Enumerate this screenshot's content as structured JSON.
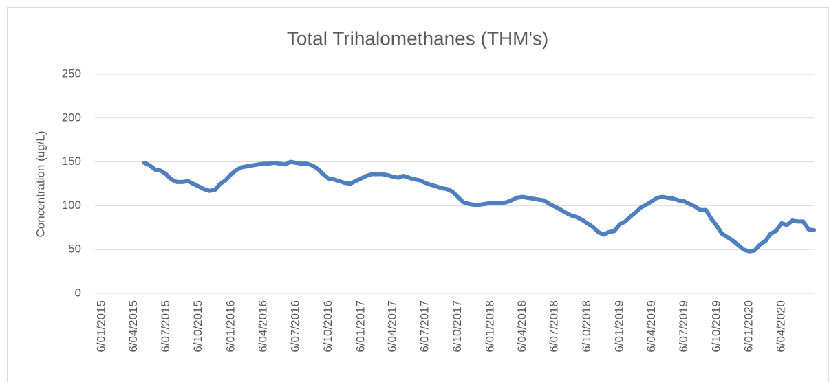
{
  "chart_data": {
    "type": "line",
    "title": "Total Trihalomethanes (THM's)",
    "y_label": "Concentration (ug/L)",
    "x": [
      "6/05/2015",
      "21/05/2015",
      "6/06/2015",
      "21/06/2015",
      "6/07/2015",
      "21/07/2015",
      "6/08/2015",
      "21/08/2015",
      "6/09/2015",
      "21/09/2015",
      "6/10/2015",
      "21/10/2015",
      "6/11/2015",
      "21/11/2015",
      "6/12/2015",
      "21/12/2015",
      "6/01/2016",
      "21/01/2016",
      "6/02/2016",
      "21/02/2016",
      "6/03/2016",
      "21/03/2016",
      "6/04/2016",
      "21/04/2016",
      "6/05/2016",
      "21/05/2016",
      "6/06/2016",
      "21/06/2016",
      "6/07/2016",
      "21/07/2016",
      "6/08/2016",
      "21/08/2016",
      "6/09/2016",
      "21/09/2016",
      "6/10/2016",
      "21/10/2016",
      "6/11/2016",
      "21/11/2016",
      "6/12/2016",
      "21/12/2016",
      "6/01/2017",
      "21/01/2017",
      "6/02/2017",
      "21/02/2017",
      "6/03/2017",
      "21/03/2017",
      "6/04/2017",
      "21/04/2017",
      "6/05/2017",
      "21/05/2017",
      "6/06/2017",
      "21/06/2017",
      "6/07/2017",
      "21/07/2017",
      "6/08/2017",
      "21/08/2017",
      "6/09/2017",
      "21/09/2017",
      "6/10/2017",
      "21/10/2017",
      "6/11/2017",
      "21/11/2017",
      "6/12/2017",
      "21/12/2017",
      "6/01/2018",
      "21/01/2018",
      "6/02/2018",
      "21/02/2018",
      "6/03/2018",
      "21/03/2018",
      "6/04/2018",
      "21/04/2018",
      "6/05/2018",
      "21/05/2018",
      "6/06/2018",
      "21/06/2018",
      "6/07/2018",
      "21/07/2018",
      "6/08/2018",
      "21/08/2018",
      "6/09/2018",
      "21/09/2018",
      "6/10/2018",
      "21/10/2018",
      "6/11/2018",
      "21/11/2018",
      "6/12/2018",
      "21/12/2018",
      "6/01/2019",
      "21/01/2019",
      "6/02/2019",
      "21/02/2019",
      "6/03/2019",
      "21/03/2019",
      "6/04/2019",
      "21/04/2019",
      "6/05/2019",
      "21/05/2019",
      "6/06/2019",
      "21/06/2019",
      "6/07/2019",
      "21/07/2019",
      "6/08/2019",
      "21/08/2019",
      "6/09/2019",
      "21/09/2019",
      "6/10/2019",
      "21/10/2019",
      "6/11/2019",
      "21/11/2019",
      "6/12/2019",
      "21/12/2019",
      "6/01/2020",
      "21/01/2020",
      "6/02/2020",
      "21/02/2020",
      "6/03/2020",
      "21/03/2020",
      "6/04/2020",
      "21/04/2020",
      "6/05/2020",
      "21/05/2020",
      "6/06/2020",
      "21/06/2020",
      "6/07/2020"
    ],
    "series": [
      {
        "name": "THM",
        "color": "#4f7fbf",
        "values": [
          149,
          146,
          141,
          140,
          136,
          130,
          127,
          127,
          128,
          125,
          122,
          119,
          117,
          118,
          125,
          129,
          136,
          141,
          144,
          145,
          146,
          147,
          148,
          148,
          149,
          148,
          147,
          150,
          149,
          148,
          148,
          146,
          142,
          136,
          131,
          130,
          128,
          126,
          125,
          128,
          131,
          134,
          136,
          136,
          136,
          135,
          133,
          132,
          134,
          132,
          130,
          129,
          126,
          124,
          122,
          120,
          119,
          116,
          110,
          104,
          102,
          101,
          101,
          102,
          103,
          103,
          103,
          104,
          106,
          109,
          110,
          109,
          108,
          107,
          106,
          102,
          99,
          96,
          92,
          89,
          87,
          84,
          80,
          76,
          70,
          67,
          70,
          71,
          79,
          82,
          88,
          93,
          98,
          101,
          105,
          109,
          110,
          109,
          108,
          106,
          105,
          102,
          99,
          95,
          95,
          85,
          77,
          68,
          64,
          60,
          55,
          50,
          48,
          49,
          56,
          60,
          68,
          71,
          80,
          78,
          83,
          82,
          82,
          73,
          72
        ]
      }
    ],
    "xlim": [
      "6/01/2015",
      "6/07/2020"
    ],
    "xticks": [
      "6/01/2015",
      "6/04/2015",
      "6/07/2015",
      "6/10/2015",
      "6/01/2016",
      "6/04/2016",
      "6/07/2016",
      "6/10/2016",
      "6/01/2017",
      "6/04/2017",
      "6/07/2017",
      "6/10/2017",
      "6/01/2018",
      "6/04/2018",
      "6/07/2018",
      "6/10/2018",
      "6/01/2019",
      "6/04/2019",
      "6/07/2019",
      "6/10/2019",
      "6/01/2020",
      "6/04/2020"
    ],
    "ylim": [
      0,
      250
    ],
    "yticks": [
      0,
      50,
      100,
      150,
      200,
      250
    ],
    "grid": true
  }
}
